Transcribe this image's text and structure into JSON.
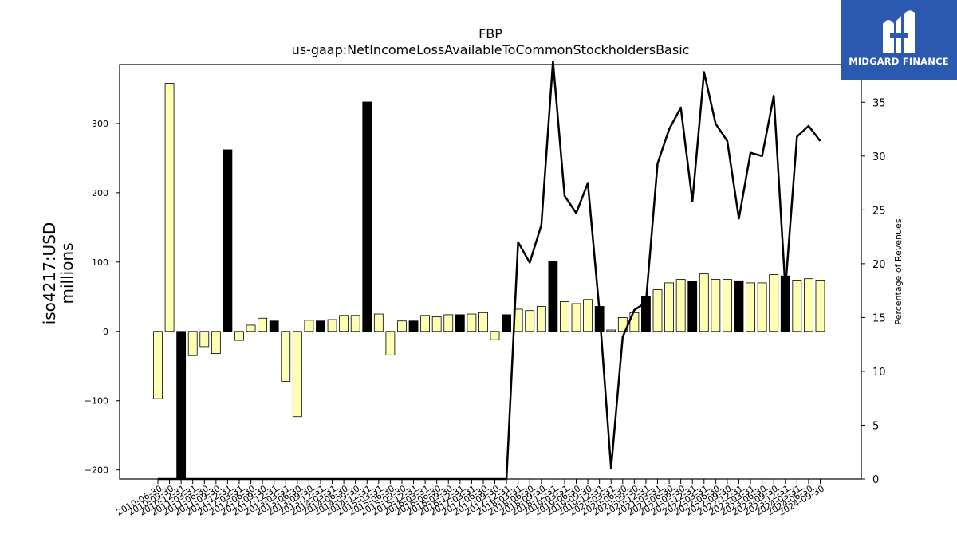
{
  "chart_data": {
    "type": "bar",
    "title": "FBP",
    "subtitle": "us-gaap:NetIncomeLossAvailableToCommonStockholdersBasic",
    "ylabel": "iso4217:USD\nmillions",
    "ylabel_right": "Percentage of Revenues",
    "ylim": [
      -213,
      385
    ],
    "ylim_right": [
      0,
      38.5
    ],
    "yticks": [
      -200,
      -100,
      0,
      100,
      200,
      300
    ],
    "yticks_right": [
      0,
      5,
      10,
      15,
      20,
      25,
      30,
      35
    ],
    "bar_colors": {
      "quarter": "#ffffb3",
      "fiscal_year": "#000000"
    },
    "line_color": "#000000",
    "categories": [
      "2010-06-30",
      "2010-09-30",
      "2010-12-31",
      "2011-03-31",
      "2011-06-30",
      "2011-09-30",
      "2011-12-31",
      "2012-03-31",
      "2012-06-30",
      "2012-09-30",
      "2012-12-31",
      "2013-03-31",
      "2013-06-30",
      "2013-09-30",
      "2013-12-31",
      "2014-03-31",
      "2014-06-30",
      "2014-09-30",
      "2014-12-31",
      "2015-03-31",
      "2015-06-30",
      "2015-09-30",
      "2015-12-31",
      "2016-03-31",
      "2016-06-30",
      "2016-09-30",
      "2016-12-31",
      "2017-03-31",
      "2017-06-30",
      "2017-09-30",
      "2017-12-31",
      "2018-03-31",
      "2018-06-30",
      "2018-09-30",
      "2018-12-31",
      "2019-03-31",
      "2019-06-30",
      "2019-09-30",
      "2019-12-31",
      "2020-03-31",
      "2020-06-30",
      "2020-09-30",
      "2020-12-31",
      "2021-03-31",
      "2021-06-30",
      "2021-09-30",
      "2021-12-31",
      "2022-03-31",
      "2022-06-30",
      "2022-09-30",
      "2022-12-31",
      "2023-03-31",
      "2023-06-30",
      "2023-09-30",
      "2023-12-31",
      "2024-03-31",
      "2024-06-30",
      "2024-09-30"
    ],
    "x_tick_labels": [
      "2010-06-30",
      "2010-09-30",
      "2010-12-31",
      "2011-03-31",
      "2011-06-30",
      "2011-09-30",
      "2011-12-31",
      "2012-03-31",
      "2012-06-30",
      "2012-09-30",
      "2012-12-31",
      "2013-03-31",
      "2013-06-30",
      "2013-09-30",
      "2013-12-31",
      "2014-03-31",
      "2014-06-30",
      "2014-09-30",
      "2014-12-31",
      "2015-03-31",
      "2015-06-30",
      "2015-09-30",
      "2015-12-31",
      "2016-03-31",
      "2016-06-30",
      "2016-09-30",
      "2016-12-31",
      "2017-03-31",
      "2017-06-30",
      "2017-09-30",
      "2017-12-31",
      "2018-03-31",
      "2018-06-30",
      "2018-09-30",
      "2018-12-31",
      "2019-03-31",
      "2019-06-30",
      "2019-09-30",
      "2019-12-31",
      "2020-03-31",
      "2020-06-30",
      "2020-09-30",
      "2020-12-31",
      "2021-03-31",
      "2021-06-30",
      "2021-09-30",
      "2021-12-31",
      "2022-03-31",
      "2022-06-30",
      "2022-09-30",
      "2022-12-31",
      "2023-03-31",
      "2023-06-30",
      "2023-09-30",
      "2023-12-31",
      "2024-03-31",
      "2024-06-30",
      "2024-09-30"
    ],
    "series": [
      {
        "type": "bar",
        "values": [
          -97,
          358,
          -213,
          -35,
          -22,
          -32,
          262,
          -13,
          9,
          19,
          15,
          -72,
          -123,
          16,
          15,
          17,
          23,
          23,
          331,
          25,
          -34,
          15,
          15,
          23,
          21,
          24,
          24,
          25,
          27,
          -12,
          24,
          32,
          30,
          36,
          101,
          43,
          40,
          46,
          36,
          2,
          20,
          27,
          50,
          60,
          70,
          75,
          72,
          83,
          75,
          75,
          73,
          70,
          70,
          82,
          80,
          74,
          76,
          74
        ],
        "fiscal_year_end": [
          false,
          false,
          true,
          false,
          false,
          false,
          true,
          false,
          false,
          false,
          true,
          false,
          false,
          false,
          true,
          false,
          false,
          false,
          true,
          false,
          false,
          false,
          true,
          false,
          false,
          false,
          true,
          false,
          false,
          false,
          true,
          false,
          false,
          false,
          true,
          false,
          false,
          false,
          true,
          false,
          false,
          false,
          true,
          false,
          false,
          false,
          true,
          false,
          false,
          false,
          true,
          false,
          false,
          false,
          true,
          false,
          false,
          false
        ]
      },
      {
        "type": "line",
        "axis": "right",
        "values": [
          0,
          0,
          0,
          0,
          0,
          0,
          0,
          0,
          0,
          0,
          0,
          0,
          0,
          0,
          0,
          0,
          0,
          0,
          0,
          0,
          0,
          0,
          0,
          0,
          0,
          0,
          0,
          0,
          0,
          0,
          0,
          22,
          20.1,
          23.6,
          38.8,
          26.3,
          24.7,
          27.5,
          15.6,
          1,
          13.2,
          15.7,
          16.4,
          29.3,
          32.5,
          34.5,
          25.8,
          37.8,
          33,
          31.4,
          24.2,
          30.3,
          30,
          35.6,
          17.7,
          31.8,
          32.8,
          31.4
        ]
      }
    ]
  },
  "logo": {
    "text": "MIDGARD FINANCE",
    "icon": "midgard-logo-icon",
    "background": "#2b59b0"
  }
}
